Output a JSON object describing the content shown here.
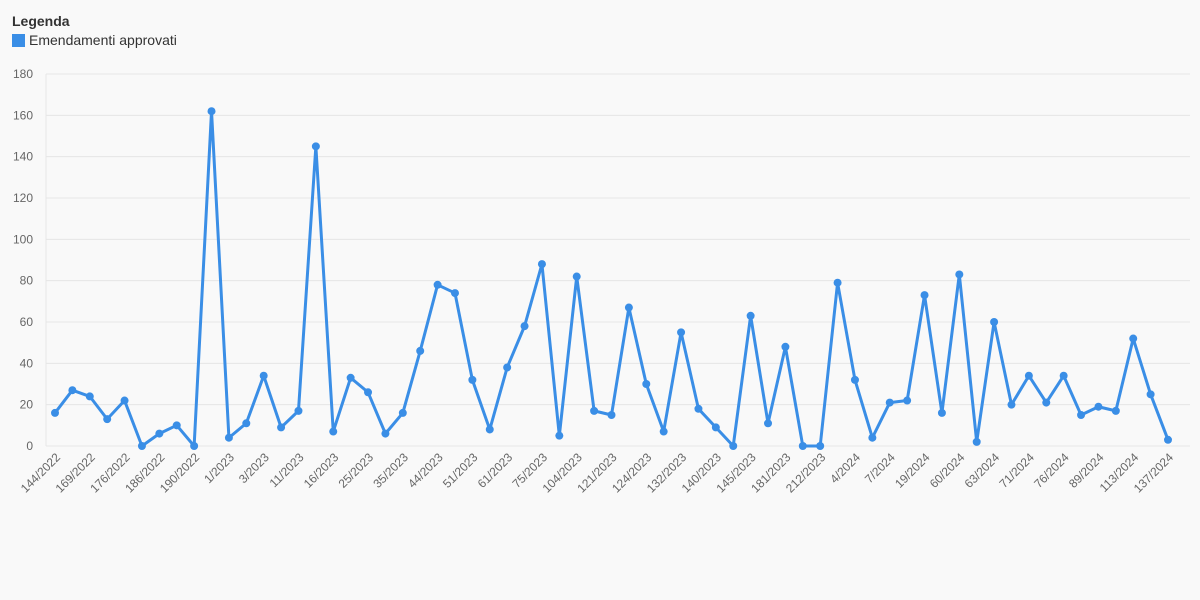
{
  "legend": {
    "title": "Legenda",
    "series_label": "Emendamenti approvati"
  },
  "colors": {
    "series": "#3a8ee6",
    "grid": "#e6e6e6",
    "axis_text": "#666666",
    "background": "#f9f9f9"
  },
  "chart_data": {
    "type": "line",
    "title": "",
    "xlabel": "",
    "ylabel": "",
    "ylim": [
      0,
      180
    ],
    "yticks": [
      0,
      20,
      40,
      60,
      80,
      100,
      120,
      140,
      160,
      180
    ],
    "grid": true,
    "legend_position": "top-left",
    "x_tick_labels": [
      "144/2022",
      "169/2022",
      "176/2022",
      "186/2022",
      "190/2022",
      "1/2023",
      "3/2023",
      "11/2023",
      "16/2023",
      "25/2023",
      "35/2023",
      "44/2023",
      "51/2023",
      "61/2023",
      "75/2023",
      "104/2023",
      "121/2023",
      "124/2023",
      "132/2023",
      "140/2023",
      "145/2023",
      "181/2023",
      "212/2023",
      "4/2024",
      "7/2024",
      "19/2024",
      "60/2024",
      "63/2024",
      "71/2024",
      "76/2024",
      "89/2024",
      "113/2024",
      "137/2024"
    ],
    "series": [
      {
        "name": "Emendamenti approvati",
        "values": [
          16,
          27,
          24,
          13,
          22,
          0,
          6,
          10,
          0,
          162,
          4,
          11,
          34,
          9,
          17,
          145,
          7,
          33,
          26,
          6,
          16,
          46,
          78,
          74,
          32,
          8,
          38,
          58,
          88,
          5,
          82,
          17,
          15,
          67,
          30,
          7,
          55,
          18,
          9,
          0,
          63,
          11,
          48,
          0,
          0,
          79,
          32,
          4,
          21,
          22,
          73,
          16,
          83,
          2,
          60,
          20,
          34,
          21,
          34,
          15,
          19,
          17,
          52,
          25,
          3
        ]
      }
    ]
  }
}
